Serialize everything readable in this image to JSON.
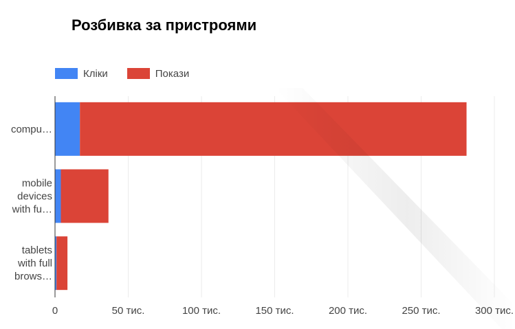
{
  "title": "Розбивка за пристроями",
  "colors": {
    "clicks": "#4285f4",
    "impressions": "#db4437",
    "grid": "#ebebeb",
    "axis": "#333333",
    "text": "#444444"
  },
  "chart_data": {
    "type": "bar",
    "orientation": "horizontal",
    "stacked": true,
    "title": "Розбивка за пристроями",
    "legend_position": "top-left",
    "grid": true,
    "categories": [
      "compu…",
      "mobile devices with fu…",
      "tablets with full brows…"
    ],
    "category_lines": [
      [
        "compu…"
      ],
      [
        "mobile",
        "devices",
        "with fu…"
      ],
      [
        "tablets",
        "with full",
        "brows…"
      ]
    ],
    "series": [
      {
        "name": "Кліки",
        "values": [
          17000,
          4000,
          1000
        ]
      },
      {
        "name": "Покази",
        "values": [
          264000,
          32500,
          7500
        ]
      }
    ],
    "xlim": [
      0,
      300000
    ],
    "xticks": [
      0,
      50000,
      100000,
      150000,
      200000,
      250000,
      300000
    ],
    "xtick_labels": [
      "0",
      "50 тис.",
      "100 тис.",
      "150 тис.",
      "200 тис.",
      "250 тис.",
      "300 тис."
    ]
  }
}
